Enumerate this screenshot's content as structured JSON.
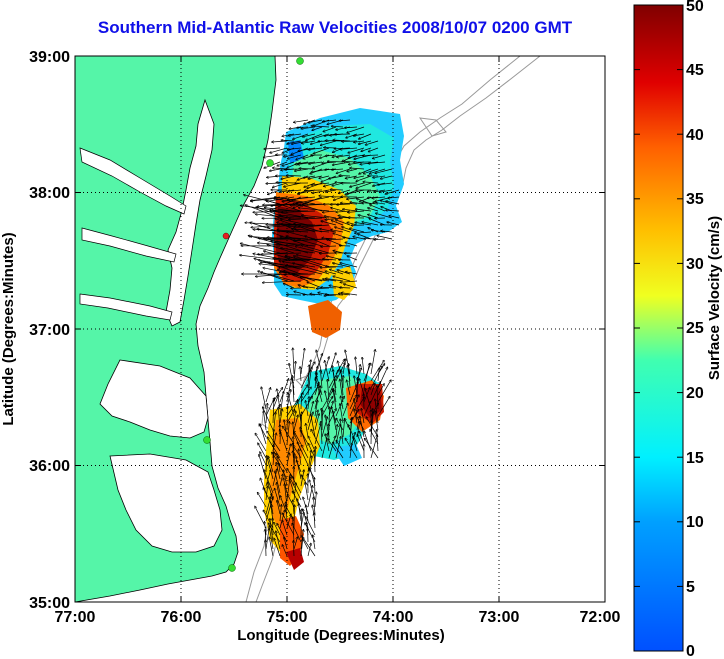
{
  "title": "Southern Mid-Atlantic Raw Velocities 2008/10/07 0200 GMT",
  "x_axis": {
    "label": "Longitude (Degrees:Minutes)",
    "ticks": [
      "77:00",
      "76:00",
      "75:00",
      "74:00",
      "73:00",
      "72:00"
    ]
  },
  "y_axis": {
    "label": "Latitude (Degrees:Minutes)",
    "ticks": [
      "39:00",
      "38:00",
      "37:00",
      "36:00",
      "35:00"
    ]
  },
  "colorbar": {
    "label": "Surface Velocity (cm/s)",
    "ticks": [
      "0",
      "5",
      "10",
      "15",
      "20",
      "25",
      "30",
      "35",
      "40",
      "45",
      "50"
    ],
    "min": 0,
    "max": 50,
    "colormap": "jet"
  },
  "colors": {
    "title": "#1010e8",
    "land": "#55f5a8",
    "coast_line": "#000000",
    "bathymetry": "#999999",
    "station_marker": "#33dd33",
    "station_marker_red": "#e62020"
  },
  "map": {
    "lon_range": [
      -77,
      -72
    ],
    "lat_range": [
      35,
      39
    ],
    "grid": "dotted"
  }
}
